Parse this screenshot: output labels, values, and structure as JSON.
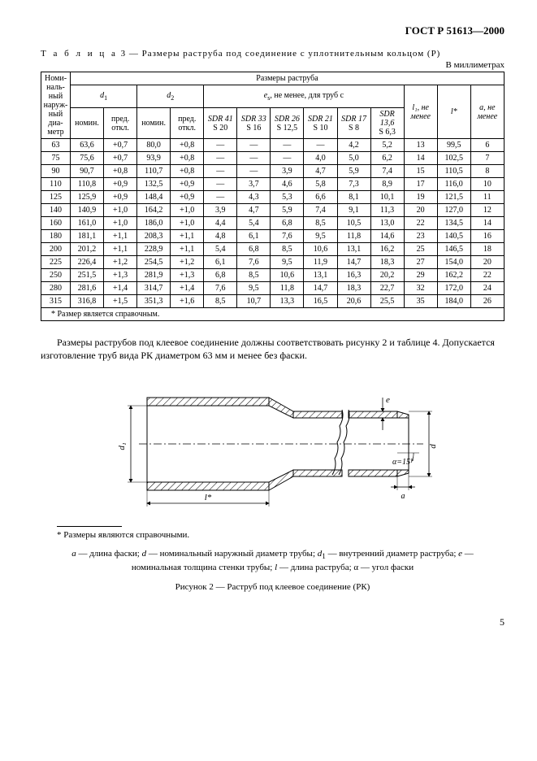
{
  "doc_header": "ГОСТ Р 51613—2000",
  "table_title_prefix": "Т а б л и ц а",
  "table_title_num": "3",
  "table_title_text": " — Размеры раструба под соединение с уплотнительным кольцом (Р)",
  "units_label": "В миллиметрах",
  "headers": {
    "col_nom_diam": "Номи­наль­ный на­руж­ный диа­метр",
    "razmery": "Размеры раструба",
    "d1": "d",
    "d1_sub": "1",
    "d2": "d",
    "d2_sub": "2",
    "es_text": "e",
    "es_sub": "s",
    "es_rest": ", не менее, для труб с",
    "nomin": "номин.",
    "pred_otkl": "пред. откл.",
    "sdr41": "SDR 41",
    "s20": "S 20",
    "sdr33": "SDR 33",
    "s16": "S 16",
    "sdr26": "SDR 26",
    "s125": "S 12,5",
    "sdr21": "SDR 21",
    "s10": "S 10",
    "sdr17": "SDR 17",
    "s8": "S 8",
    "sdr136": "SDR 13,6",
    "s63": "S 6,3",
    "l1_ne_menee": "l₁, не менее",
    "l_star": "l*",
    "a_ne_menee": "a, не менее"
  },
  "rows": [
    [
      "63",
      "63,6",
      "+0,7",
      "80,0",
      "+0,8",
      "—",
      "—",
      "—",
      "—",
      "4,2",
      "5,2",
      "13",
      "99,5",
      "6"
    ],
    [
      "75",
      "75,6",
      "+0,7",
      "93,9",
      "+0,8",
      "—",
      "—",
      "—",
      "4,0",
      "5,0",
      "6,2",
      "14",
      "102,5",
      "7"
    ],
    [
      "90",
      "90,7",
      "+0,8",
      "110,7",
      "+0,8",
      "—",
      "—",
      "3,9",
      "4,7",
      "5,9",
      "7,4",
      "15",
      "110,5",
      "8"
    ],
    [
      "110",
      "110,8",
      "+0,9",
      "132,5",
      "+0,9",
      "—",
      "3,7",
      "4,6",
      "5,8",
      "7,3",
      "8,9",
      "17",
      "116,0",
      "10"
    ],
    [
      "125",
      "125,9",
      "+0,9",
      "148,4",
      "+0,9",
      "—",
      "4,3",
      "5,3",
      "6,6",
      "8,1",
      "10,1",
      "19",
      "121,5",
      "11"
    ],
    [
      "140",
      "140,9",
      "+1,0",
      "164,2",
      "+1,0",
      "3,9",
      "4,7",
      "5,9",
      "7,4",
      "9,1",
      "11,3",
      "20",
      "127,0",
      "12"
    ],
    [
      "160",
      "161,0",
      "+1,0",
      "186,0",
      "+1,0",
      "4,4",
      "5,4",
      "6,8",
      "8,5",
      "10,5",
      "13,0",
      "22",
      "134,5",
      "14"
    ],
    [
      "180",
      "181,1",
      "+1,1",
      "208,3",
      "+1,1",
      "4,8",
      "6,1",
      "7,6",
      "9,5",
      "11,8",
      "14,6",
      "23",
      "140,5",
      "16"
    ],
    [
      "200",
      "201,2",
      "+1,1",
      "228,9",
      "+1,1",
      "5,4",
      "6,8",
      "8,5",
      "10,6",
      "13,1",
      "16,2",
      "25",
      "146,5",
      "18"
    ],
    [
      "225",
      "226,4",
      "+1,2",
      "254,5",
      "+1,2",
      "6,1",
      "7,6",
      "9,5",
      "11,9",
      "14,7",
      "18,3",
      "27",
      "154,0",
      "20"
    ],
    [
      "250",
      "251,5",
      "+1,3",
      "281,9",
      "+1,3",
      "6,8",
      "8,5",
      "10,6",
      "13,1",
      "16,3",
      "20,2",
      "29",
      "162,2",
      "22"
    ],
    [
      "280",
      "281,6",
      "+1,4",
      "314,7",
      "+1,4",
      "7,6",
      "9,5",
      "11,8",
      "14,7",
      "18,3",
      "22,7",
      "32",
      "172,0",
      "24"
    ],
    [
      "315",
      "316,8",
      "+1,5",
      "351,3",
      "+1,6",
      "8,5",
      "10,7",
      "13,3",
      "16,5",
      "20,6",
      "25,5",
      "35",
      "184,0",
      "26"
    ]
  ],
  "table_footnote": "* Размер является справочным.",
  "body_text": "Размеры раструбов под клеевое соединение должны соответствовать рисунку 2 и таблице 4. Допускается изготовление труб вида РК диаметром 63 мм и менее без фаски.",
  "figure": {
    "d1_label": "d₁",
    "d_label": "d",
    "e_label": "e",
    "a_label": "a",
    "l_label": "l*",
    "angle_label": "α=15°"
  },
  "footnote_star": "* Размеры являются справочными.",
  "legend_text": "a — длина фаски; d — номинальный наружный диаметр трубы; d₁ — внутренний диаметр раструба; e — номинальная толщина стенки трубы; l — длина раструба; α — угол фаски",
  "fig_caption": "Рисунок 2 — Раструб под клеевое соединение (РК)",
  "page_num": "5",
  "styling": {
    "background": "#ffffff",
    "text_color": "#000000",
    "border_color": "#000000",
    "hatch_color": "#000000",
    "body_fontsize": 11,
    "table_fontsize": 10,
    "header_fontsize": 13
  }
}
